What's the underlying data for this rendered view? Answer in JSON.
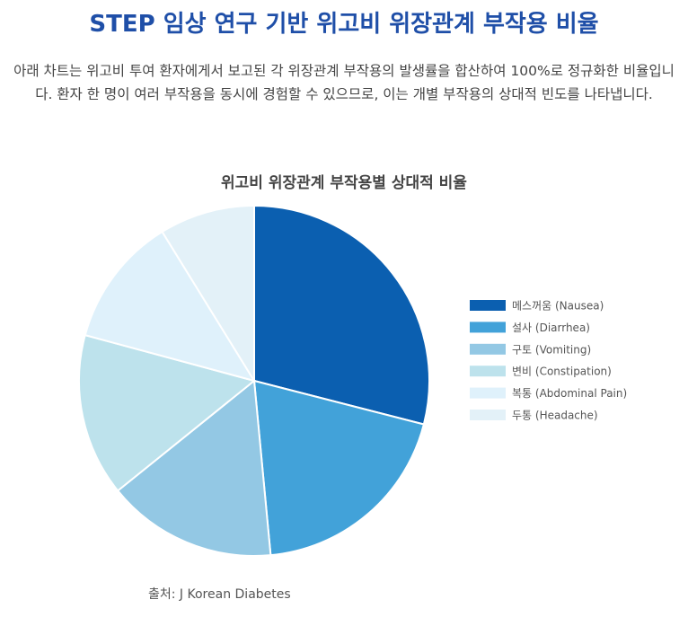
{
  "page": {
    "title": "STEP 임상 연구 기반 위고비 위장관계 부작용 비율",
    "description": "아래 차트는 위고비 투여 환자에게서 보고된 각 위장관계 부작용의 발생률을 합산하여 100%로 정규화한 비율입니다. 환자 한 명이 여러 부작용을 동시에 경험할 수 있으므로, 이는 개별 부작용의 상대적 빈도를 나타냅니다.",
    "source": "출처: J Korean Diabetes"
  },
  "chart_data": {
    "type": "pie",
    "title": "위고비 위장관계 부작용별 상대적 비율",
    "categories": [
      "메스꺼움 (Nausea)",
      "설사 (Diarrhea)",
      "구토 (Vomiting)",
      "변비 (Constipation)",
      "복통 (Abdominal Pain)",
      "두통 (Headache)"
    ],
    "values": [
      29.0,
      19.5,
      15.7,
      15.0,
      12.0,
      8.8
    ],
    "colors": [
      "#0b5fb0",
      "#42a2d9",
      "#93c8e4",
      "#bde2ec",
      "#dff1fb",
      "#e3f1f8"
    ],
    "legend_position": "right"
  }
}
